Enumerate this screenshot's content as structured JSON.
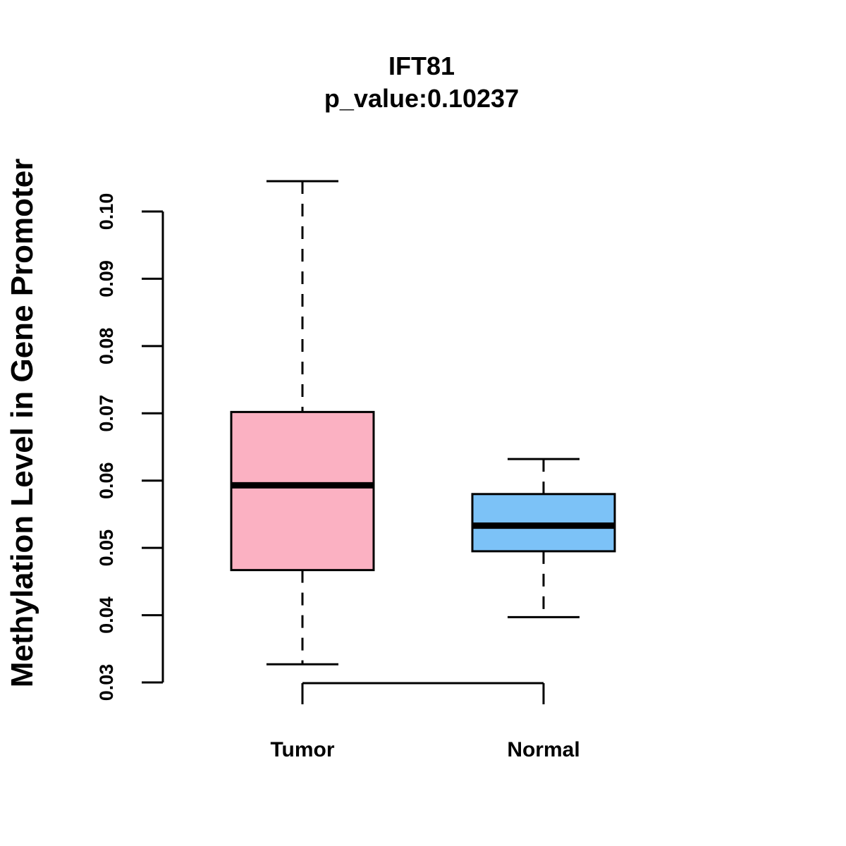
{
  "chart_data": {
    "type": "boxplot",
    "title": "IFT81",
    "subtitle": "p_value:0.10237",
    "xlabel": "",
    "ylabel": "Methylation Level in Gene Promoter",
    "ylim": [
      0.03,
      0.1
    ],
    "yticks": [
      "0.03",
      "0.04",
      "0.05",
      "0.06",
      "0.07",
      "0.08",
      "0.09",
      "0.10"
    ],
    "grid": false,
    "categories": [
      "Tumor",
      "Normal"
    ],
    "boxes": [
      {
        "name": "Tumor",
        "whisker_low": 0.0327,
        "q1": 0.0467,
        "median": 0.0593,
        "q3": 0.0702,
        "whisker_high": 0.1045,
        "color": "#FBB1C2"
      },
      {
        "name": "Normal",
        "whisker_low": 0.0397,
        "q1": 0.0495,
        "median": 0.0533,
        "q3": 0.058,
        "whisker_high": 0.0632,
        "color": "#7CC2F7"
      }
    ]
  }
}
